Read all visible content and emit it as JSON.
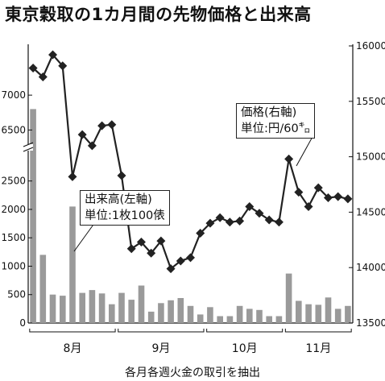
{
  "chart_data": {
    "type": "bar+line",
    "title": "東京穀取の1カ月間の先物価格と出来高",
    "footnote": "各月各週火金の取引を抽出",
    "months": [
      "8月",
      "9月",
      "10月",
      "11月"
    ],
    "volume": {
      "label": "出来高(左軸)",
      "unit": "単位:1枚100俵",
      "axis_side": "left",
      "lower_ticks": [
        0,
        500,
        1000,
        1500,
        2000,
        2500
      ],
      "upper_ticks": [
        6500,
        7000
      ],
      "axis_break": true,
      "values": [
        6800,
        1200,
        500,
        480,
        2050,
        530,
        580,
        520,
        330,
        530,
        410,
        660,
        200,
        350,
        400,
        440,
        300,
        150,
        280,
        120,
        120,
        300,
        250,
        230,
        120,
        120,
        870,
        390,
        330,
        320,
        450,
        250,
        300
      ]
    },
    "price": {
      "label": "価格(右軸)",
      "unit": "単位:円/60㌔",
      "axis_side": "right",
      "ticks": [
        13500,
        14000,
        14500,
        15000,
        15500,
        16000
      ],
      "ylim": [
        13500,
        16000
      ],
      "values": [
        15800,
        15720,
        15920,
        15820,
        14820,
        15200,
        15100,
        15280,
        15290,
        14830,
        14170,
        14230,
        14130,
        14240,
        13990,
        14060,
        14090,
        14310,
        14400,
        14450,
        14410,
        14420,
        14550,
        14490,
        14430,
        14410,
        14980,
        14680,
        14550,
        14720,
        14630,
        14640,
        14620
      ]
    }
  }
}
